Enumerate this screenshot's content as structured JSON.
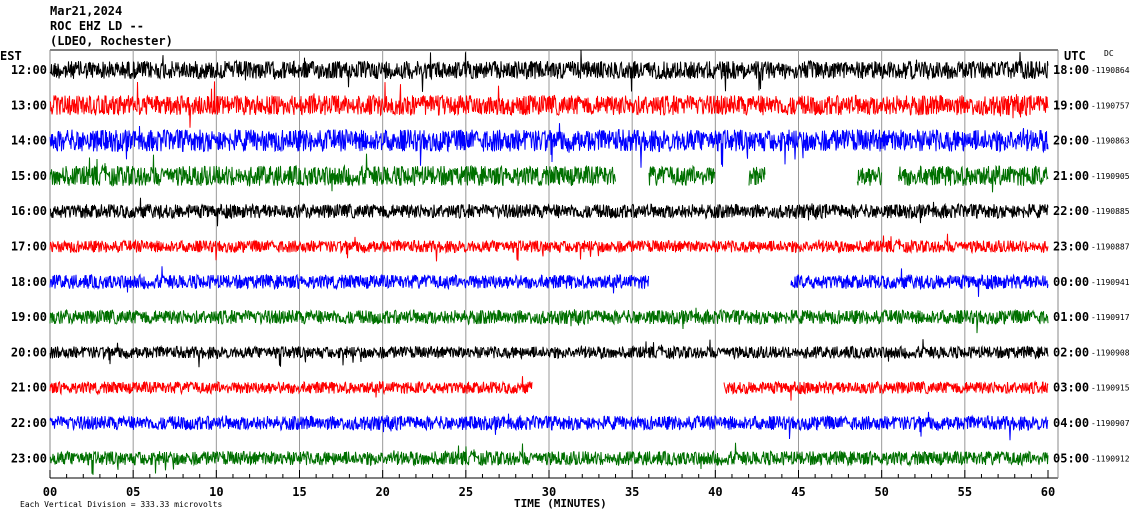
{
  "header": {
    "date": "Mar21,2024",
    "station": "ROC EHZ LD --",
    "network": "(LDEO, Rochester)"
  },
  "chart_data": {
    "type": "line",
    "left_axis_label": "EST",
    "right_axis_label": "UTC",
    "dc_label": "DC",
    "xlabel": "TIME (MINUTES)",
    "xlim": [
      0,
      60
    ],
    "x_ticks": [
      "00",
      "05",
      "10",
      "15",
      "20",
      "25",
      "30",
      "35",
      "40",
      "45",
      "50",
      "55",
      "60"
    ],
    "scale_note": "Each Vertical Division =  333.33 microvolts",
    "trace_colors": [
      "#000000",
      "#ff0000",
      "#0000ff",
      "#007000"
    ],
    "rows": [
      {
        "est": "12:00",
        "utc": "18:00",
        "dc": "-1190864",
        "gaps": []
      },
      {
        "est": "13:00",
        "utc": "19:00",
        "dc": "-1190757",
        "gaps": []
      },
      {
        "est": "14:00",
        "utc": "20:00",
        "dc": "-1190863",
        "gaps": []
      },
      {
        "est": "15:00",
        "utc": "21:00",
        "dc": "-1190905",
        "gaps": [
          [
            34,
            36
          ],
          [
            40,
            42
          ],
          [
            43,
            48.5
          ],
          [
            50,
            51
          ]
        ]
      },
      {
        "est": "16:00",
        "utc": "22:00",
        "dc": "-1190885",
        "gaps": []
      },
      {
        "est": "17:00",
        "utc": "23:00",
        "dc": "-1190887",
        "gaps": []
      },
      {
        "est": "18:00",
        "utc": "00:00",
        "dc": "-1190941",
        "gaps": [
          [
            36,
            44.5
          ]
        ]
      },
      {
        "est": "19:00",
        "utc": "01:00",
        "dc": "-1190917",
        "gaps": []
      },
      {
        "est": "20:00",
        "utc": "02:00",
        "dc": "-1190908",
        "gaps": []
      },
      {
        "est": "21:00",
        "utc": "03:00",
        "dc": "-1190915",
        "gaps": [
          [
            29,
            40.5
          ]
        ]
      },
      {
        "est": "22:00",
        "utc": "04:00",
        "dc": "-1190907",
        "gaps": []
      },
      {
        "est": "23:00",
        "utc": "05:00",
        "dc": "-1190912",
        "gaps": []
      }
    ]
  }
}
